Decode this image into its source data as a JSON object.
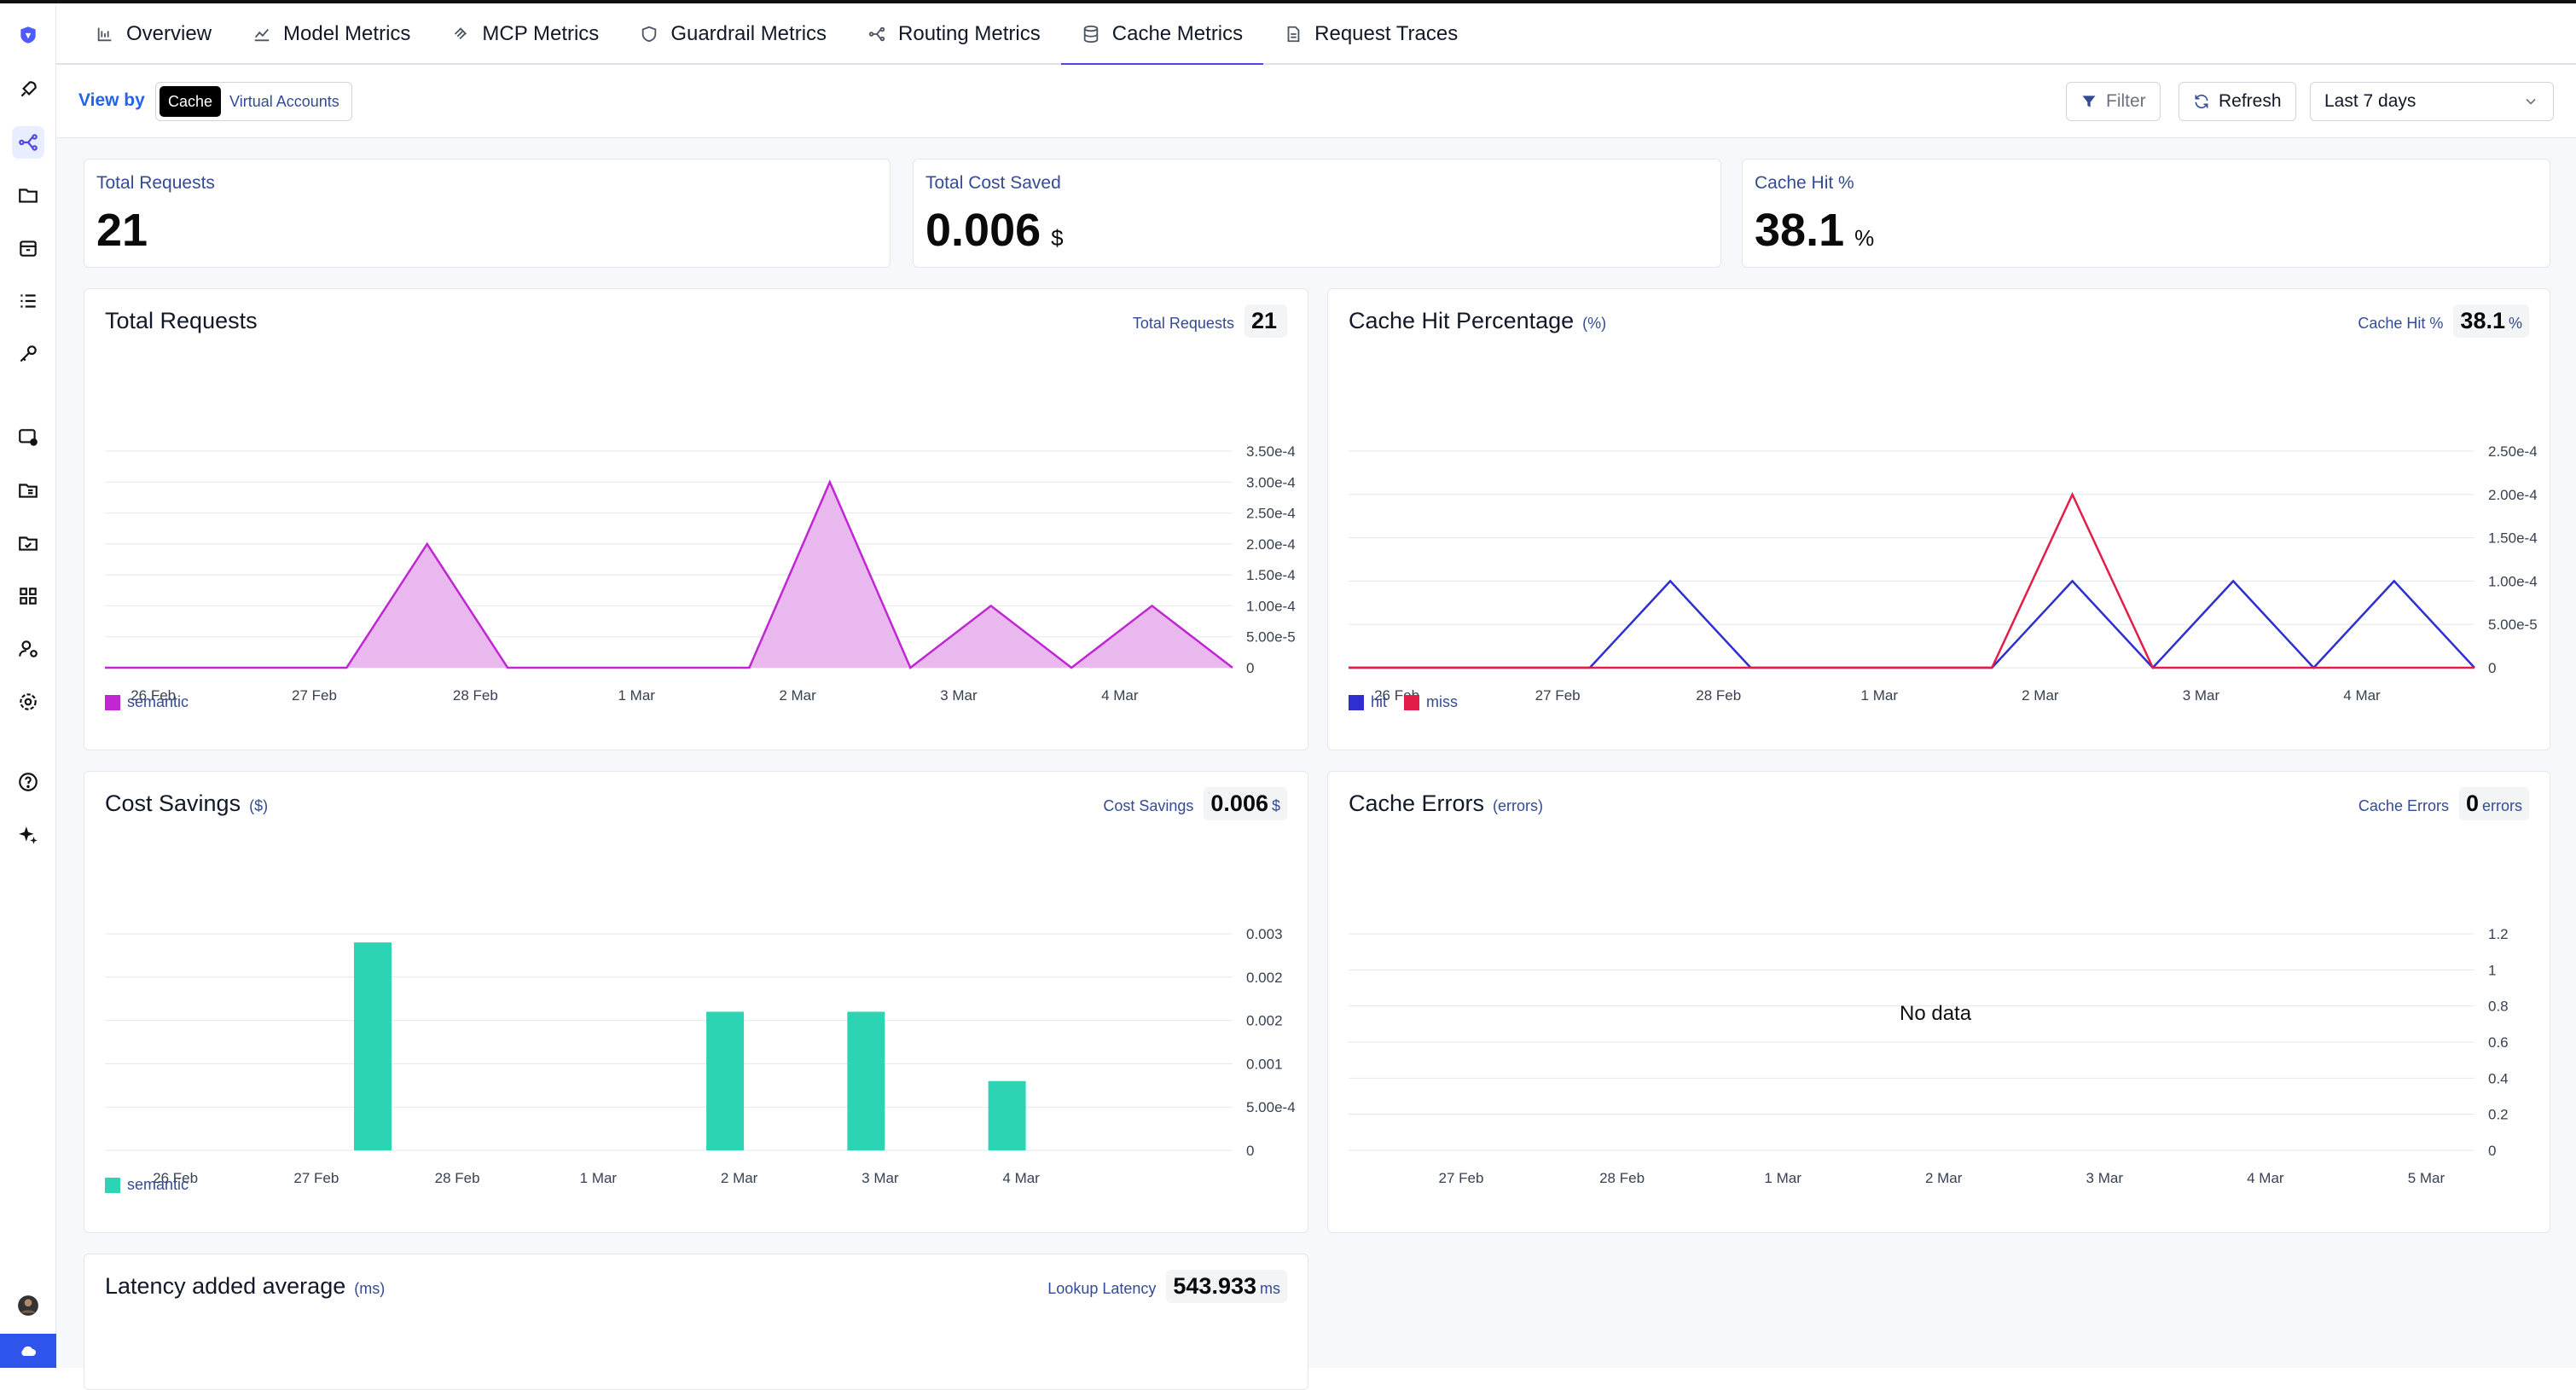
{
  "tabs": [
    {
      "label": "Overview",
      "icon": "overview-icon"
    },
    {
      "label": "Model Metrics",
      "icon": "line-chart-icon"
    },
    {
      "label": "MCP Metrics",
      "icon": "mcp-icon"
    },
    {
      "label": "Guardrail Metrics",
      "icon": "shield-icon"
    },
    {
      "label": "Routing Metrics",
      "icon": "routing-icon"
    },
    {
      "label": "Cache Metrics",
      "icon": "database-icon",
      "active": true
    },
    {
      "label": "Request Traces",
      "icon": "file-icon"
    }
  ],
  "filterbar": {
    "view_by_label": "View by",
    "view_options": [
      "Cache",
      "Virtual Accounts"
    ],
    "filter_label": "Filter",
    "refresh_label": "Refresh",
    "range_value": "Last 7 days"
  },
  "kpis": [
    {
      "label": "Total Requests",
      "value": "21",
      "unit": ""
    },
    {
      "label": "Total Cost Saved",
      "value": "0.006",
      "unit": "$"
    },
    {
      "label": "Cache Hit %",
      "value": "38.1",
      "unit": "%"
    }
  ],
  "cards": {
    "total_requests": {
      "title": "Total Requests",
      "unit": "",
      "pill_label": "Total Requests",
      "pill_value": "21",
      "pill_unit": ""
    },
    "cache_hit": {
      "title": "Cache Hit Percentage",
      "unit": "(%)",
      "pill_label": "Cache Hit %",
      "pill_value": "38.1",
      "pill_unit": "%"
    },
    "cost_savings": {
      "title": "Cost Savings",
      "unit": "($)",
      "pill_label": "Cost Savings",
      "pill_value": "0.006",
      "pill_unit": "$"
    },
    "cache_errors": {
      "title": "Cache Errors",
      "unit": "(errors)",
      "pill_label": "Cache Errors",
      "pill_value": "0",
      "pill_unit": "errors",
      "no_data": "No data"
    },
    "latency": {
      "title": "Latency added average",
      "unit": "(ms)",
      "pill_label": "Lookup Latency",
      "pill_value": "543.933",
      "pill_unit": "ms"
    }
  },
  "chart_data": [
    {
      "id": "total_requests",
      "type": "area",
      "x_ticks": [
        "26 Feb",
        "27 Feb",
        "28 Feb",
        "1 Mar",
        "2 Mar",
        "3 Mar",
        "4 Mar"
      ],
      "y_ticks": [
        "0",
        "5.00e-5",
        "1.00e-4",
        "1.50e-4",
        "2.00e-4",
        "2.50e-4",
        "3.00e-4",
        "3.50e-4"
      ],
      "ylim": [
        0,
        0.00035
      ],
      "x": [
        0,
        1,
        1.5,
        2,
        2.5,
        3,
        4,
        4.5,
        5,
        5.5,
        6,
        6.5,
        7
      ],
      "series": [
        {
          "name": "semantic",
          "color": "#c026d3",
          "fill": "#e9b8ef",
          "values": [
            0,
            0,
            0,
            0.0002,
            0,
            0,
            0,
            0.0003,
            0,
            0.0001,
            0,
            0.0001,
            0
          ]
        }
      ]
    },
    {
      "id": "cache_hit",
      "type": "line",
      "x_ticks": [
        "26 Feb",
        "27 Feb",
        "28 Feb",
        "1 Mar",
        "2 Mar",
        "3 Mar",
        "4 Mar"
      ],
      "y_ticks": [
        "0",
        "5.00e-5",
        "1.00e-4",
        "1.50e-4",
        "2.00e-4",
        "2.50e-4"
      ],
      "ylim": [
        0,
        0.00025
      ],
      "x": [
        0,
        1,
        1.5,
        2,
        2.5,
        3,
        4,
        4.5,
        5,
        5.5,
        6,
        6.5,
        7
      ],
      "series": [
        {
          "name": "hit",
          "color": "#2f2fd1",
          "values": [
            0,
            0,
            0,
            0.0001,
            0,
            0,
            0,
            0.0001,
            0,
            0.0001,
            0,
            0.0001,
            0
          ]
        },
        {
          "name": "miss",
          "color": "#e11d48",
          "values": [
            0,
            0,
            0,
            0,
            0,
            0,
            0,
            0.0002,
            0,
            0,
            0,
            0,
            0
          ]
        }
      ]
    },
    {
      "id": "cost_savings",
      "type": "bar",
      "x_ticks": [
        "26 Feb",
        "27 Feb",
        "28 Feb",
        "1 Mar",
        "2 Mar",
        "3 Mar",
        "4 Mar"
      ],
      "y_ticks": [
        "0",
        "5.00e-4",
        "0.001",
        "0.002",
        "0.002",
        "0.003"
      ],
      "ylim": [
        0,
        0.0025
      ],
      "categories": [
        "27 Feb",
        "2 Mar",
        "3 Mar",
        "4 Mar"
      ],
      "series": [
        {
          "name": "semantic",
          "color": "#2dd4b4",
          "values": [
            0.0024,
            0.0016,
            0.0016,
            0.0008
          ]
        }
      ]
    },
    {
      "id": "cache_errors",
      "type": "line",
      "x_ticks": [
        "27 Feb",
        "28 Feb",
        "1 Mar",
        "2 Mar",
        "3 Mar",
        "4 Mar",
        "5 Mar"
      ],
      "y_ticks": [
        "0",
        "0.2",
        "0.4",
        "0.6",
        "0.8",
        "1",
        "1.2"
      ],
      "ylim": [
        0,
        1.2
      ],
      "series": []
    }
  ]
}
